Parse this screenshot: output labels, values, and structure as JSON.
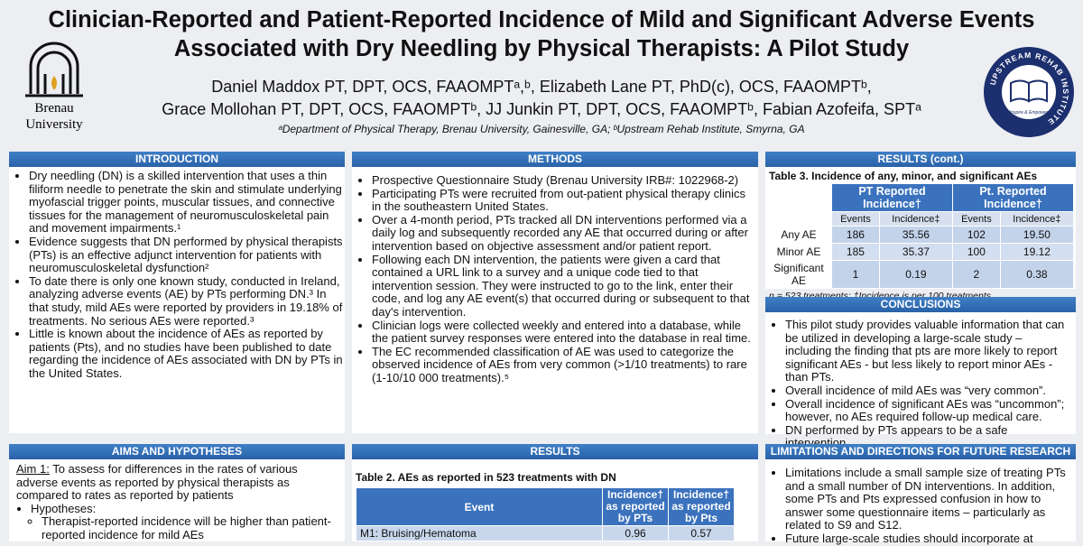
{
  "header": {
    "title_lines": [
      "Clinician-Reported and Patient-Reported Incidence of Mild and Significant Adverse Events",
      "Associated with Dry Needling by Physical Therapists: A Pilot Study"
    ],
    "author_lines": [
      "Daniel Maddox PT, DPT, OCS, FAAOMPTᵃ,ᵇ, Elizabeth Lane PT, PhD(c), OCS, FAAOMPTᵇ,",
      "Grace Mollohan PT, DPT, OCS, FAAOMPTᵇ, JJ Junkin PT, DPT, OCS, FAAOMPTᵇ, Fabian Azofeifa, SPTᵃ"
    ],
    "affiliations": "ᵃDepartment of Physical Therapy, Brenau University, Gainesville, GA;  ᵇUpstream Rehab Institute, Smyrna, GA",
    "left_logo": [
      "Brenau",
      "University"
    ],
    "right_logo": {
      "ring": "UPSTREAM REHAB INSTITUTE",
      "motto": "Inspire & Empower"
    }
  },
  "introduction": {
    "heading": "INTRODUCTION",
    "bullets": [
      "Dry needling (DN) is a skilled intervention that uses a thin filiform needle to penetrate the skin and stimulate underlying myofascial trigger points, muscular tissues, and connective tissues for the management of neuromusculoskeletal pain and movement impairments.¹",
      "Evidence suggests that DN performed by physical therapists (PTs) is an effective adjunct intervention for patients with neuromusculoskeletal dysfunction²",
      "To date there is only one known study, conducted in Ireland, analyzing adverse events (AE) by PTs performing DN.³ In that study, mild AEs were reported by providers in 19.18% of treatments. No serious AEs were reported.³",
      "Little is known about the incidence of AEs as reported by patients (Pts), and no studies have been published to date regarding the incidence of AEs associated with DN by PTs in the United States."
    ]
  },
  "aims": {
    "heading": "AIMS AND HYPOTHESES",
    "aim_label": "Aim 1:",
    "aim_text": " To assess for differences in the rates of various adverse events as reported by physical therapists as compared to rates as reported by patients",
    "hypotheses_label": "Hypotheses:",
    "hypotheses": [
      "Therapist-reported incidence will be higher than patient-reported incidence for mild AEs"
    ]
  },
  "methods": {
    "heading": "METHODS",
    "bullets": [
      "Prospective Questionnaire Study (Brenau University IRB#: 1022968-2)",
      "Participating PTs were recruited from out-patient physical therapy clinics in the southeastern United States.",
      "Over a 4-month period, PTs tracked all DN interventions performed via a daily log and subsequently recorded any AE that occurred during or after intervention based on objective assessment and/or patient report.",
      "Following each DN intervention, the patients were given a card that contained a URL link to a survey and a unique code tied to that intervention session. They were instructed to go to the link, enter their code, and log any AE event(s) that occurred during or subsequent to that day's intervention.",
      "Clinician logs were collected weekly and entered into a database, while the patient survey responses were entered into the database in real time.",
      "The EC recommended classification of AE was used to categorize the observed incidence of AEs from very common (>1/10 treatments) to rare (1-10/10 000 treatments).⁵"
    ]
  },
  "results": {
    "heading": "RESULTS",
    "table_caption": "Table 2.  AEs as reported in 523 treatments with DN",
    "columns": [
      "Event",
      "Incidence† as reported by PTs",
      "Incidence† as reported by Pts"
    ],
    "rows": [
      [
        "M1: Bruising/Hematoma",
        "0.96",
        "0.57"
      ]
    ]
  },
  "results_cont": {
    "heading": "RESULTS (cont.)",
    "table_caption": "Table 3.  Incidence of any, minor, and significant AEs",
    "group_headers": [
      "PT Reported Incidence†",
      "Pt. Reported Incidence†"
    ],
    "sub_headers": [
      "Events",
      "Incidence‡",
      "Events",
      "Incidence‡"
    ],
    "rows": [
      [
        "Any AE",
        "186",
        "35.56",
        "102",
        "19.50"
      ],
      [
        "Minor AE",
        "185",
        "35.37",
        "100",
        "19.12"
      ],
      [
        "Significant AE",
        "1",
        "0.19",
        "2",
        "0.38"
      ]
    ],
    "footnote": "n = 523 treatments; †Incidence is per 100 treatments"
  },
  "conclusions": {
    "heading": "CONCLUSIONS",
    "bullets": [
      "This pilot study provides valuable information that can be utilized in developing a large-scale study – including the finding that pts are more likely to report significant AEs - but less likely to report minor AEs - than PTs.",
      "Overall incidence of mild AEs was “very common”.",
      "Overall incidence of significant AEs was “uncommon”; however, no AEs required follow-up medical care.",
      "DN performed by PTs appears to be a safe intervention."
    ]
  },
  "limitations": {
    "heading": "LIMITATIONS AND DIRECTIONS FOR FUTURE RESEARCH",
    "bullets": [
      "Limitations include a small sample size of treating PTs and a small number of DN interventions. In addition, some PTs and Pts expressed confusion in how to answer some questionnaire items – particularly as related to S9 and S12.",
      "Future large-scale studies should incorporate at"
    ]
  }
}
